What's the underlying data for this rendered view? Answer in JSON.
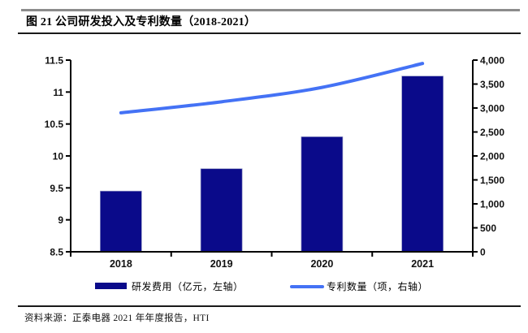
{
  "header": {
    "title": "图 21 公司研发投入及专利数量（2018-2021）"
  },
  "legend": {
    "bar_label": "研发费用（亿元，左轴）",
    "line_label": "专利数量（项，右轴）"
  },
  "footer": {
    "source": "资料来源：正泰电器 2021 年年度报告，HTI"
  },
  "colors": {
    "bar": "#0a0a8a",
    "bar_edge": "#8f94c4",
    "line": "#4472f5",
    "axis": "#000000",
    "tick_text": "#111111",
    "top_rule": "#8c8c8c",
    "black_rule": "#1a1a1a"
  },
  "chart_data": {
    "type": "bar",
    "subtype": "bar+line dual axis",
    "title": "图 21 公司研发投入及专利数量（2018-2021）",
    "categories": [
      "2018",
      "2019",
      "2020",
      "2021"
    ],
    "series": [
      {
        "name": "研发费用（亿元，左轴）",
        "type": "bar",
        "axis": "left",
        "values": [
          9.45,
          9.8,
          10.3,
          11.25
        ]
      },
      {
        "name": "专利数量（项，右轴）",
        "type": "line",
        "axis": "right",
        "values": [
          2900,
          3130,
          3430,
          3930
        ]
      }
    ],
    "left_axis": {
      "min": 8.5,
      "max": 11.5,
      "step": 0.5,
      "tick_labels": [
        "8.5",
        "9",
        "9.5",
        "10",
        "10.5",
        "11",
        "11.5"
      ]
    },
    "right_axis": {
      "min": 0,
      "max": 4000,
      "step": 500,
      "tick_labels": [
        "0",
        "500",
        "1,000",
        "1,500",
        "2,000",
        "2,500",
        "3,000",
        "3,500",
        "4,000"
      ]
    },
    "grid": false,
    "legend_position": "bottom",
    "xlabel": "",
    "ylabel_left": "亿元",
    "ylabel_right": "项"
  }
}
